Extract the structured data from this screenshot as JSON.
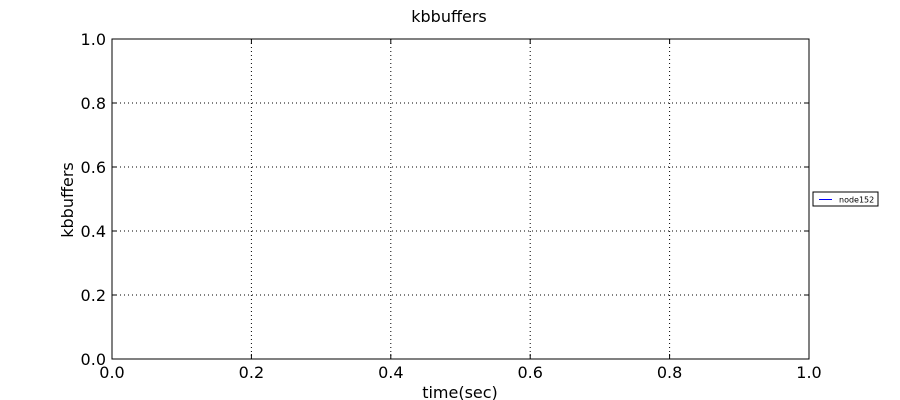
{
  "chart_data": {
    "type": "line",
    "title": "kbbuffers",
    "xlabel": "time(sec)",
    "ylabel": "kbbuffers",
    "xlim": [
      0.0,
      1.0
    ],
    "ylim": [
      0.0,
      1.0
    ],
    "x_ticks": [
      "0.0",
      "0.2",
      "0.4",
      "0.6",
      "0.8",
      "1.0"
    ],
    "y_ticks": [
      "0.0",
      "0.2",
      "0.4",
      "0.6",
      "0.8",
      "1.0"
    ],
    "grid": true,
    "legend_position": "right",
    "series": [
      {
        "name": "node152",
        "color": "#0000ff",
        "x": [],
        "y": []
      }
    ]
  }
}
